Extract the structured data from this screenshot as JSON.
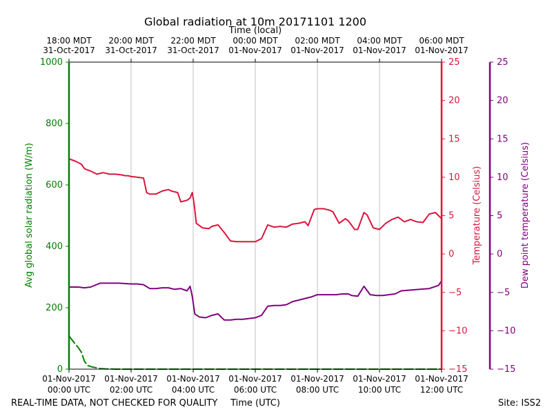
{
  "chart_data": {
    "type": "line",
    "title": "Global radiation at 10m 20171101 1200",
    "top_axis_label": "Time (local)",
    "xlabel": "Time (UTC)",
    "x_range_hours": [
      0,
      12
    ],
    "bottom_ticks": [
      {
        "hour": 0,
        "line1": "01-Nov-2017",
        "line2": "00:00 UTC"
      },
      {
        "hour": 2,
        "line1": "01-Nov-2017",
        "line2": "02:00 UTC"
      },
      {
        "hour": 4,
        "line1": "01-Nov-2017",
        "line2": "04:00 UTC"
      },
      {
        "hour": 6,
        "line1": "01-Nov-2017",
        "line2": "06:00 UTC"
      },
      {
        "hour": 8,
        "line1": "01-Nov-2017",
        "line2": "08:00 UTC"
      },
      {
        "hour": 10,
        "line1": "01-Nov-2017",
        "line2": "10:00 UTC"
      },
      {
        "hour": 12,
        "line1": "01-Nov-2017",
        "line2": "12:00 UTC"
      }
    ],
    "top_ticks": [
      {
        "hour": 0,
        "line1": "18:00 MDT",
        "line2": "31-Oct-2017"
      },
      {
        "hour": 2,
        "line1": "20:00 MDT",
        "line2": "31-Oct-2017"
      },
      {
        "hour": 4,
        "line1": "22:00 MDT",
        "line2": "31-Oct-2017"
      },
      {
        "hour": 6,
        "line1": "00:00 MDT",
        "line2": "01-Nov-2017"
      },
      {
        "hour": 8,
        "line1": "02:00 MDT",
        "line2": "01-Nov-2017"
      },
      {
        "hour": 10,
        "line1": "04:00 MDT",
        "line2": "01-Nov-2017"
      },
      {
        "hour": 12,
        "line1": "06:00 MDT",
        "line2": "01-Nov-2017"
      }
    ],
    "left_axis": {
      "label": "Avg global solar radiation (W/m)",
      "ylim": [
        0,
        1000
      ],
      "ticks": [
        0,
        200,
        400,
        600,
        800,
        1000
      ],
      "color": "#008000"
    },
    "temp_axis": {
      "label": "Temperature (Celsius)",
      "ylim": [
        -15,
        25
      ],
      "ticks": [
        -15,
        -10,
        -5,
        0,
        5,
        10,
        15,
        20,
        25
      ],
      "tick_labels": [
        "−15",
        "−10",
        "−5",
        "0",
        "5",
        "10",
        "15",
        "20",
        "25"
      ],
      "color": "#dc143c"
    },
    "dew_axis": {
      "label": "Dew point temperature (Celsius)",
      "ylim": [
        -15,
        25
      ],
      "ticks": [
        -15,
        -10,
        -5,
        0,
        5,
        10,
        15,
        20,
        25
      ],
      "tick_labels": [
        "−15",
        "−10",
        "−5",
        "0",
        "5",
        "10",
        "15",
        "20",
        "25"
      ],
      "color": "#800080"
    },
    "series": [
      {
        "name": "Avg global solar radiation",
        "axis": "left",
        "color": "#008000",
        "x": [
          0,
          0.1,
          0.2,
          0.3,
          0.4,
          0.5,
          0.6,
          0.75,
          0.9,
          1.0,
          1.2,
          1.5,
          2,
          4,
          6,
          8,
          10,
          12
        ],
        "y": [
          108,
          95,
          82,
          70,
          55,
          25,
          12,
          7,
          4,
          2,
          1,
          0,
          0,
          0,
          0,
          0,
          0,
          0
        ]
      },
      {
        "name": "Temperature",
        "axis": "temp",
        "color": "#dc143c",
        "x": [
          0,
          0.2,
          0.4,
          0.5,
          0.7,
          0.9,
          1.1,
          1.3,
          1.5,
          1.7,
          1.8,
          1.9,
          2.0,
          2.2,
          2.4,
          2.5,
          2.6,
          2.8,
          3.0,
          3.2,
          3.3,
          3.5,
          3.6,
          3.8,
          3.9,
          3.97,
          4.03,
          4.1,
          4.3,
          4.5,
          4.6,
          4.8,
          5.0,
          5.2,
          5.4,
          5.6,
          5.8,
          6.0,
          6.2,
          6.4,
          6.6,
          6.8,
          7.0,
          7.2,
          7.4,
          7.6,
          7.7,
          7.9,
          8.0,
          8.2,
          8.4,
          8.5,
          8.7,
          8.9,
          9.0,
          9.2,
          9.3,
          9.5,
          9.6,
          9.8,
          10.0,
          10.2,
          10.4,
          10.6,
          10.8,
          11.0,
          11.2,
          11.4,
          11.6,
          11.8,
          12.0
        ],
        "y": [
          12.4,
          12.1,
          11.7,
          11.1,
          10.8,
          10.4,
          10.6,
          10.4,
          10.4,
          10.3,
          10.2,
          10.2,
          10.1,
          10.0,
          9.9,
          8.0,
          7.8,
          7.8,
          8.2,
          8.4,
          8.2,
          8.0,
          6.8,
          7.0,
          7.3,
          8.0,
          6.5,
          4.0,
          3.4,
          3.3,
          3.6,
          3.8,
          2.8,
          1.7,
          1.6,
          1.6,
          1.6,
          1.6,
          2.0,
          3.8,
          3.5,
          3.6,
          3.5,
          3.9,
          4.0,
          4.2,
          3.7,
          5.8,
          5.9,
          5.9,
          5.7,
          5.5,
          4.0,
          4.6,
          4.3,
          3.2,
          3.2,
          5.4,
          5.1,
          3.4,
          3.2,
          4.0,
          4.5,
          4.8,
          4.2,
          4.5,
          4.2,
          4.1,
          5.2,
          5.4,
          4.6
        ]
      },
      {
        "name": "Dew point temperature",
        "axis": "dew",
        "color": "#800080",
        "x": [
          0,
          0.3,
          0.5,
          0.7,
          1.0,
          1.3,
          1.6,
          2.0,
          2.2,
          2.4,
          2.6,
          2.8,
          3.0,
          3.2,
          3.4,
          3.6,
          3.8,
          3.9,
          3.97,
          4.05,
          4.2,
          4.4,
          4.6,
          4.8,
          5.0,
          5.2,
          5.4,
          5.6,
          5.8,
          6.0,
          6.2,
          6.4,
          6.6,
          6.8,
          7.0,
          7.2,
          7.4,
          7.6,
          7.8,
          8.0,
          8.2,
          8.4,
          8.6,
          8.8,
          9.0,
          9.1,
          9.3,
          9.5,
          9.7,
          9.9,
          10.1,
          10.3,
          10.5,
          10.7,
          11.0,
          11.3,
          11.6,
          11.9,
          12.0
        ],
        "y": [
          -4.3,
          -4.3,
          -4.4,
          -4.3,
          -3.8,
          -3.8,
          -3.8,
          -3.9,
          -3.9,
          -4.0,
          -4.5,
          -4.5,
          -4.4,
          -4.4,
          -4.6,
          -4.5,
          -4.8,
          -4.2,
          -5.5,
          -7.8,
          -8.2,
          -8.3,
          -8.0,
          -7.8,
          -8.6,
          -8.6,
          -8.5,
          -8.5,
          -8.4,
          -8.3,
          -8.0,
          -6.8,
          -6.7,
          -6.7,
          -6.6,
          -6.2,
          -6.0,
          -5.8,
          -5.6,
          -5.3,
          -5.3,
          -5.3,
          -5.3,
          -5.2,
          -5.2,
          -5.4,
          -5.5,
          -4.2,
          -5.3,
          -5.4,
          -5.4,
          -5.3,
          -5.2,
          -4.8,
          -4.7,
          -4.6,
          -4.5,
          -4.1,
          -3.5
        ]
      }
    ]
  },
  "footer": {
    "left_note": "REAL-TIME DATA, NOT CHECKED FOR QUALITY",
    "site": "Site: ISS2"
  }
}
